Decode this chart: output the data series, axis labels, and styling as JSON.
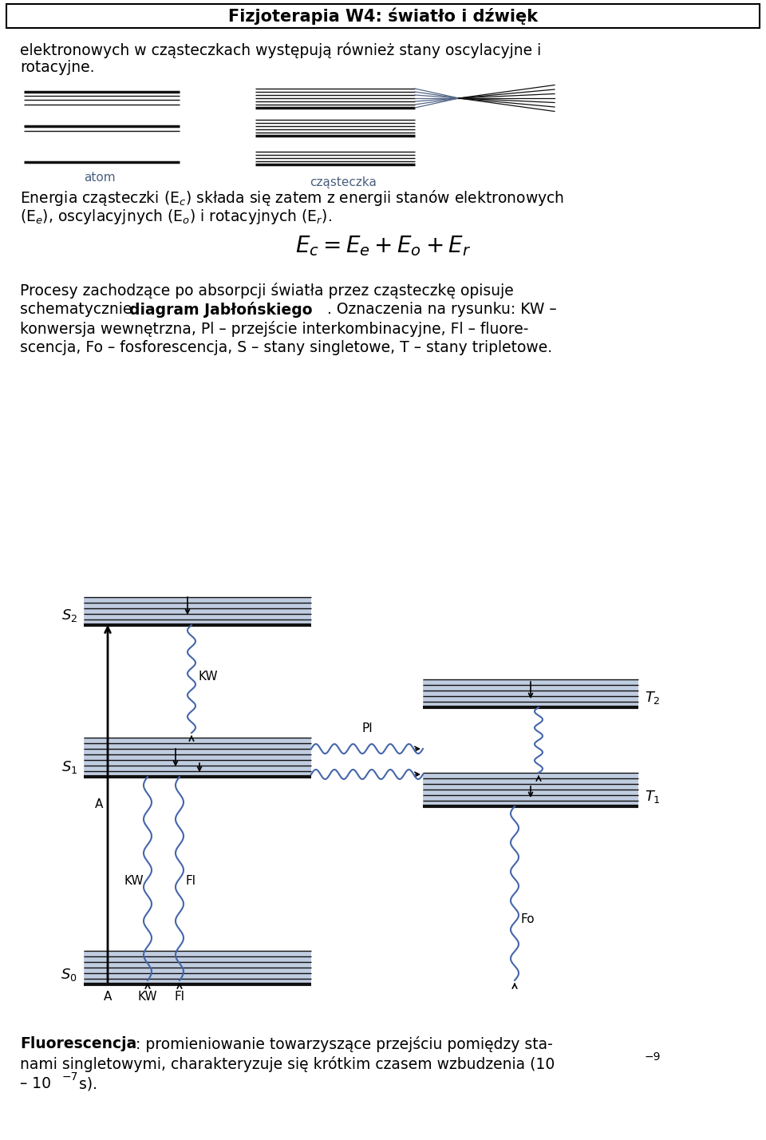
{
  "title": "Fizjoterapia W4: światło i dźwięk",
  "bg_color": "#ffffff",
  "para1": "elektronowych w cząsteczkach występują również stany oscylacyjne i rotacyjne.",
  "atom_label": "atom",
  "czasteczka_label": "cząsteczka",
  "formula": "$E_c = E_e + E_o + E_r$",
  "para2a": "Energia cząsteczki (E",
  "para2b": "c",
  "para2c": ") składa się zatem z energii stanów elektronowych",
  "para2d": "(E",
  "para2e": "e",
  "para2f": "), oscylacyjnych (E",
  "para2g": "o",
  "para2h": ") i rotacyjnych (E",
  "para2i": "r",
  "para2j": ").",
  "para3a": "Procesy zachodzące po absorpcji światła przez cząsteczkę opisuje",
  "para3b": "schematycznie ",
  "para3c": "diagram Jabłońskiego",
  "para3d": ". Oznaczenia na rysunku: KW –",
  "para3e": "konwersja wewnętrzna, Pl – przejście interkombinacyjne, Fl – fluore-",
  "para3f": "scencja, Fo – fosforescencja, S – stany singletowe, T – stany tripletowe.",
  "para4a": "Fluorescencja",
  "para4b": ": promieniowanie towarzyszące przejściu pomiędzy sta-",
  "para4c": "nami singletowymi, charakteryzuje się krótkim czasem wzbudzenia (10",
  "para4d": "−9",
  "para4e": "– 10",
  "para4f": "−7",
  "para4g": " s).",
  "line_color": "#111111",
  "band_color": "#c8d4e8",
  "wave_color": "#4466aa",
  "label_color": "#4a6080"
}
